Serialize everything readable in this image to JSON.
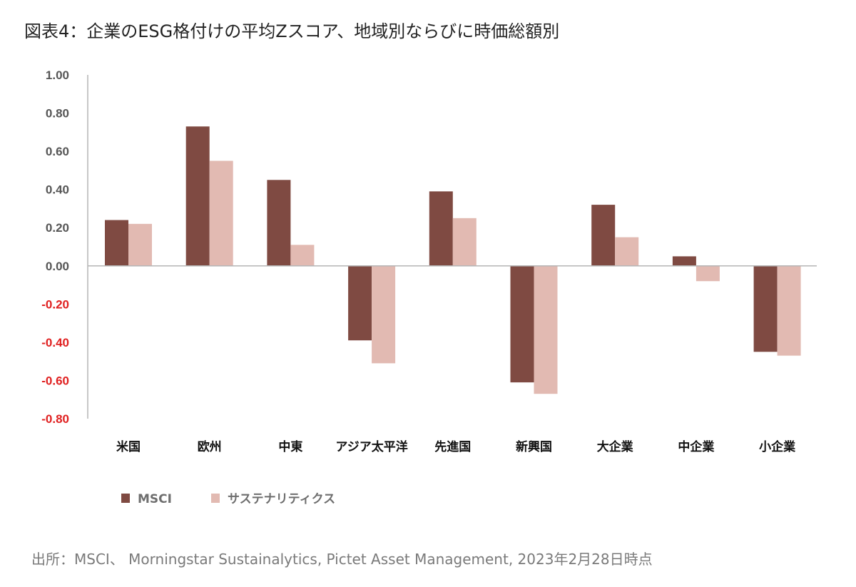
{
  "title": "図表4：企業のESG格付けの平均Zスコア、地域別ならびに時価総額別",
  "source": "出所：MSCI、 Morningstar Sustainalytics, Pictet Asset Management, 2023年2月28日時点",
  "colors": {
    "msci": "#7f4a42",
    "sustainalytics": "#e2bab2",
    "tick_positive": "#555555",
    "tick_negative": "#e02020",
    "axis": "#b5b5b5"
  },
  "chart_data": {
    "type": "bar",
    "categories": [
      "米国",
      "欧州",
      "中東",
      "アジア太平洋",
      "先進国",
      "新興国",
      "大企業",
      "中企業",
      "小企業"
    ],
    "series": [
      {
        "name": "MSCI",
        "values": [
          0.24,
          0.73,
          0.45,
          -0.39,
          0.39,
          -0.61,
          0.32,
          0.05,
          -0.45
        ]
      },
      {
        "name": "サステナリティクス",
        "values": [
          0.22,
          0.55,
          0.11,
          -0.51,
          0.25,
          -0.67,
          0.15,
          -0.08,
          -0.47
        ]
      }
    ],
    "yticks": [
      "1.00",
      "0.80",
      "0.60",
      "0.40",
      "0.20",
      "0.00",
      "-0.20",
      "-0.40",
      "-0.60",
      "-0.80"
    ],
    "ylim": [
      -0.8,
      1.0
    ],
    "title": "",
    "xlabel": "",
    "ylabel": "",
    "grid": false,
    "legend_position": "bottom-left"
  }
}
